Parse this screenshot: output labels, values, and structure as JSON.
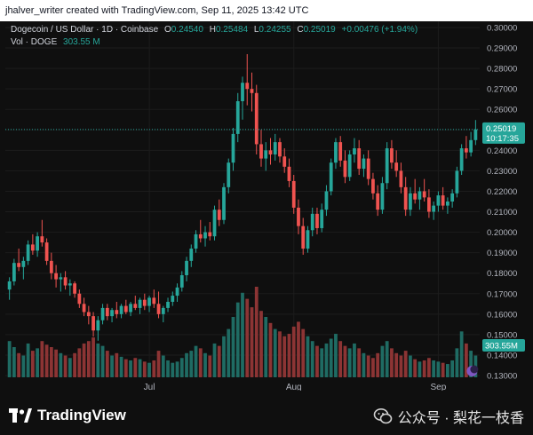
{
  "caption": "jhalver_writer created with TradingView.com, Sep 11, 2025 13:42 UTC",
  "legend": {
    "symbol": "Dogecoin / US Dollar · 1D · Coinbase",
    "o_label": "O",
    "o": "0.24540",
    "h_label": "H",
    "h": "0.25484",
    "l_label": "L",
    "l": "0.24255",
    "c_label": "C",
    "c": "0.25019",
    "change": "+0.00476 (+1.94%)",
    "vol_label": "Vol · DOGE",
    "vol": "303.55 M"
  },
  "price_tag": {
    "price": "0.25019",
    "countdown": "10:17:35"
  },
  "vol_tag": "303.55M",
  "footer": {
    "logo_text": "TradingView",
    "wechat_text": "公众号 · 梨花一枝香"
  },
  "colors": {
    "up": "#26a69a",
    "down": "#ef5350",
    "vol_up": "#1f6b63",
    "vol_down": "#8c3434",
    "background": "#0f0f0f",
    "grid": "#1c1c1c"
  },
  "chart_data": {
    "type": "candlestick",
    "title": "Dogecoin / US Dollar · 1D · Coinbase",
    "y_axis_ticks": [
      "0.30000",
      "0.29000",
      "0.28000",
      "0.27000",
      "0.26000",
      "0.25000",
      "0.24000",
      "0.23000",
      "0.22000",
      "0.21000",
      "0.20000",
      "0.19000",
      "0.18000",
      "0.17000",
      "0.16000",
      "0.15000",
      "0.14000",
      "0.13000"
    ],
    "x_axis_labels": [
      {
        "label": "Jul",
        "index": 30
      },
      {
        "label": "Aug",
        "index": 61
      },
      {
        "label": "Sep",
        "index": 92
      }
    ],
    "ylim": [
      0.13,
      0.3
    ],
    "candles": [
      {
        "o": 0.172,
        "h": 0.178,
        "l": 0.167,
        "c": 0.176,
        "v": 0.3
      },
      {
        "o": 0.176,
        "h": 0.187,
        "l": 0.174,
        "c": 0.185,
        "v": 0.25
      },
      {
        "o": 0.185,
        "h": 0.192,
        "l": 0.181,
        "c": 0.183,
        "v": 0.2
      },
      {
        "o": 0.183,
        "h": 0.188,
        "l": 0.177,
        "c": 0.186,
        "v": 0.18
      },
      {
        "o": 0.186,
        "h": 0.196,
        "l": 0.184,
        "c": 0.194,
        "v": 0.28
      },
      {
        "o": 0.194,
        "h": 0.199,
        "l": 0.189,
        "c": 0.191,
        "v": 0.22
      },
      {
        "o": 0.191,
        "h": 0.2,
        "l": 0.188,
        "c": 0.198,
        "v": 0.24
      },
      {
        "o": 0.198,
        "h": 0.206,
        "l": 0.193,
        "c": 0.195,
        "v": 0.3
      },
      {
        "o": 0.195,
        "h": 0.197,
        "l": 0.184,
        "c": 0.186,
        "v": 0.27
      },
      {
        "o": 0.186,
        "h": 0.19,
        "l": 0.177,
        "c": 0.18,
        "v": 0.25
      },
      {
        "o": 0.18,
        "h": 0.184,
        "l": 0.173,
        "c": 0.177,
        "v": 0.23
      },
      {
        "o": 0.177,
        "h": 0.18,
        "l": 0.171,
        "c": 0.178,
        "v": 0.2
      },
      {
        "o": 0.178,
        "h": 0.181,
        "l": 0.172,
        "c": 0.174,
        "v": 0.18
      },
      {
        "o": 0.174,
        "h": 0.177,
        "l": 0.169,
        "c": 0.175,
        "v": 0.16
      },
      {
        "o": 0.175,
        "h": 0.176,
        "l": 0.168,
        "c": 0.17,
        "v": 0.2
      },
      {
        "o": 0.17,
        "h": 0.172,
        "l": 0.163,
        "c": 0.165,
        "v": 0.24
      },
      {
        "o": 0.165,
        "h": 0.168,
        "l": 0.159,
        "c": 0.161,
        "v": 0.28
      },
      {
        "o": 0.161,
        "h": 0.164,
        "l": 0.155,
        "c": 0.159,
        "v": 0.3
      },
      {
        "o": 0.159,
        "h": 0.161,
        "l": 0.149,
        "c": 0.152,
        "v": 0.33
      },
      {
        "o": 0.152,
        "h": 0.159,
        "l": 0.147,
        "c": 0.157,
        "v": 0.28
      },
      {
        "o": 0.157,
        "h": 0.165,
        "l": 0.155,
        "c": 0.163,
        "v": 0.26
      },
      {
        "o": 0.163,
        "h": 0.165,
        "l": 0.157,
        "c": 0.159,
        "v": 0.22
      },
      {
        "o": 0.159,
        "h": 0.163,
        "l": 0.156,
        "c": 0.162,
        "v": 0.18
      },
      {
        "o": 0.162,
        "h": 0.166,
        "l": 0.158,
        "c": 0.16,
        "v": 0.2
      },
      {
        "o": 0.16,
        "h": 0.165,
        "l": 0.158,
        "c": 0.164,
        "v": 0.17
      },
      {
        "o": 0.164,
        "h": 0.167,
        "l": 0.16,
        "c": 0.161,
        "v": 0.15
      },
      {
        "o": 0.161,
        "h": 0.166,
        "l": 0.159,
        "c": 0.165,
        "v": 0.14
      },
      {
        "o": 0.165,
        "h": 0.169,
        "l": 0.162,
        "c": 0.163,
        "v": 0.16
      },
      {
        "o": 0.163,
        "h": 0.168,
        "l": 0.16,
        "c": 0.167,
        "v": 0.15
      },
      {
        "o": 0.167,
        "h": 0.17,
        "l": 0.162,
        "c": 0.164,
        "v": 0.13
      },
      {
        "o": 0.164,
        "h": 0.169,
        "l": 0.161,
        "c": 0.168,
        "v": 0.12
      },
      {
        "o": 0.168,
        "h": 0.172,
        "l": 0.163,
        "c": 0.165,
        "v": 0.14
      },
      {
        "o": 0.165,
        "h": 0.171,
        "l": 0.158,
        "c": 0.16,
        "v": 0.22
      },
      {
        "o": 0.16,
        "h": 0.164,
        "l": 0.156,
        "c": 0.163,
        "v": 0.18
      },
      {
        "o": 0.163,
        "h": 0.168,
        "l": 0.161,
        "c": 0.166,
        "v": 0.14
      },
      {
        "o": 0.166,
        "h": 0.171,
        "l": 0.164,
        "c": 0.169,
        "v": 0.12
      },
      {
        "o": 0.169,
        "h": 0.175,
        "l": 0.166,
        "c": 0.173,
        "v": 0.13
      },
      {
        "o": 0.173,
        "h": 0.181,
        "l": 0.171,
        "c": 0.179,
        "v": 0.16
      },
      {
        "o": 0.179,
        "h": 0.188,
        "l": 0.176,
        "c": 0.186,
        "v": 0.2
      },
      {
        "o": 0.186,
        "h": 0.194,
        "l": 0.183,
        "c": 0.192,
        "v": 0.22
      },
      {
        "o": 0.192,
        "h": 0.201,
        "l": 0.19,
        "c": 0.199,
        "v": 0.26
      },
      {
        "o": 0.199,
        "h": 0.206,
        "l": 0.195,
        "c": 0.197,
        "v": 0.24
      },
      {
        "o": 0.197,
        "h": 0.203,
        "l": 0.193,
        "c": 0.2,
        "v": 0.2
      },
      {
        "o": 0.2,
        "h": 0.205,
        "l": 0.196,
        "c": 0.198,
        "v": 0.18
      },
      {
        "o": 0.198,
        "h": 0.213,
        "l": 0.196,
        "c": 0.211,
        "v": 0.28
      },
      {
        "o": 0.211,
        "h": 0.216,
        "l": 0.203,
        "c": 0.206,
        "v": 0.26
      },
      {
        "o": 0.206,
        "h": 0.224,
        "l": 0.204,
        "c": 0.222,
        "v": 0.34
      },
      {
        "o": 0.222,
        "h": 0.236,
        "l": 0.219,
        "c": 0.234,
        "v": 0.4
      },
      {
        "o": 0.234,
        "h": 0.251,
        "l": 0.23,
        "c": 0.248,
        "v": 0.5
      },
      {
        "o": 0.248,
        "h": 0.268,
        "l": 0.244,
        "c": 0.264,
        "v": 0.62
      },
      {
        "o": 0.264,
        "h": 0.276,
        "l": 0.255,
        "c": 0.273,
        "v": 0.7
      },
      {
        "o": 0.273,
        "h": 0.287,
        "l": 0.262,
        "c": 0.27,
        "v": 0.65
      },
      {
        "o": 0.27,
        "h": 0.278,
        "l": 0.259,
        "c": 0.268,
        "v": 0.58
      },
      {
        "o": 0.268,
        "h": 0.272,
        "l": 0.238,
        "c": 0.243,
        "v": 0.75
      },
      {
        "o": 0.243,
        "h": 0.25,
        "l": 0.232,
        "c": 0.236,
        "v": 0.55
      },
      {
        "o": 0.236,
        "h": 0.244,
        "l": 0.23,
        "c": 0.24,
        "v": 0.5
      },
      {
        "o": 0.24,
        "h": 0.246,
        "l": 0.233,
        "c": 0.238,
        "v": 0.45
      },
      {
        "o": 0.238,
        "h": 0.248,
        "l": 0.235,
        "c": 0.244,
        "v": 0.4
      },
      {
        "o": 0.244,
        "h": 0.246,
        "l": 0.234,
        "c": 0.237,
        "v": 0.38
      },
      {
        "o": 0.237,
        "h": 0.241,
        "l": 0.229,
        "c": 0.232,
        "v": 0.34
      },
      {
        "o": 0.232,
        "h": 0.236,
        "l": 0.222,
        "c": 0.225,
        "v": 0.36
      },
      {
        "o": 0.225,
        "h": 0.228,
        "l": 0.209,
        "c": 0.212,
        "v": 0.42
      },
      {
        "o": 0.212,
        "h": 0.216,
        "l": 0.199,
        "c": 0.203,
        "v": 0.46
      },
      {
        "o": 0.203,
        "h": 0.207,
        "l": 0.189,
        "c": 0.192,
        "v": 0.4
      },
      {
        "o": 0.192,
        "h": 0.203,
        "l": 0.19,
        "c": 0.201,
        "v": 0.34
      },
      {
        "o": 0.201,
        "h": 0.212,
        "l": 0.198,
        "c": 0.209,
        "v": 0.3
      },
      {
        "o": 0.209,
        "h": 0.212,
        "l": 0.199,
        "c": 0.202,
        "v": 0.26
      },
      {
        "o": 0.202,
        "h": 0.214,
        "l": 0.2,
        "c": 0.211,
        "v": 0.24
      },
      {
        "o": 0.211,
        "h": 0.223,
        "l": 0.208,
        "c": 0.22,
        "v": 0.28
      },
      {
        "o": 0.22,
        "h": 0.236,
        "l": 0.218,
        "c": 0.234,
        "v": 0.32
      },
      {
        "o": 0.234,
        "h": 0.246,
        "l": 0.231,
        "c": 0.244,
        "v": 0.36
      },
      {
        "o": 0.244,
        "h": 0.247,
        "l": 0.232,
        "c": 0.235,
        "v": 0.3
      },
      {
        "o": 0.235,
        "h": 0.24,
        "l": 0.224,
        "c": 0.227,
        "v": 0.26
      },
      {
        "o": 0.227,
        "h": 0.24,
        "l": 0.225,
        "c": 0.238,
        "v": 0.24
      },
      {
        "o": 0.238,
        "h": 0.246,
        "l": 0.234,
        "c": 0.241,
        "v": 0.28
      },
      {
        "o": 0.241,
        "h": 0.245,
        "l": 0.228,
        "c": 0.231,
        "v": 0.24
      },
      {
        "o": 0.231,
        "h": 0.238,
        "l": 0.227,
        "c": 0.236,
        "v": 0.2
      },
      {
        "o": 0.236,
        "h": 0.24,
        "l": 0.223,
        "c": 0.226,
        "v": 0.18
      },
      {
        "o": 0.226,
        "h": 0.229,
        "l": 0.216,
        "c": 0.219,
        "v": 0.16
      },
      {
        "o": 0.219,
        "h": 0.223,
        "l": 0.208,
        "c": 0.211,
        "v": 0.2
      },
      {
        "o": 0.211,
        "h": 0.227,
        "l": 0.209,
        "c": 0.224,
        "v": 0.26
      },
      {
        "o": 0.224,
        "h": 0.244,
        "l": 0.221,
        "c": 0.241,
        "v": 0.3
      },
      {
        "o": 0.241,
        "h": 0.245,
        "l": 0.231,
        "c": 0.234,
        "v": 0.24
      },
      {
        "o": 0.234,
        "h": 0.24,
        "l": 0.227,
        "c": 0.23,
        "v": 0.2
      },
      {
        "o": 0.23,
        "h": 0.234,
        "l": 0.219,
        "c": 0.222,
        "v": 0.18
      },
      {
        "o": 0.222,
        "h": 0.227,
        "l": 0.208,
        "c": 0.211,
        "v": 0.22
      },
      {
        "o": 0.211,
        "h": 0.222,
        "l": 0.208,
        "c": 0.219,
        "v": 0.18
      },
      {
        "o": 0.219,
        "h": 0.226,
        "l": 0.214,
        "c": 0.216,
        "v": 0.15
      },
      {
        "o": 0.216,
        "h": 0.222,
        "l": 0.211,
        "c": 0.22,
        "v": 0.13
      },
      {
        "o": 0.22,
        "h": 0.226,
        "l": 0.215,
        "c": 0.217,
        "v": 0.14
      },
      {
        "o": 0.217,
        "h": 0.221,
        "l": 0.207,
        "c": 0.21,
        "v": 0.16
      },
      {
        "o": 0.21,
        "h": 0.215,
        "l": 0.206,
        "c": 0.213,
        "v": 0.14
      },
      {
        "o": 0.213,
        "h": 0.22,
        "l": 0.21,
        "c": 0.218,
        "v": 0.13
      },
      {
        "o": 0.218,
        "h": 0.222,
        "l": 0.211,
        "c": 0.213,
        "v": 0.12
      },
      {
        "o": 0.213,
        "h": 0.217,
        "l": 0.209,
        "c": 0.215,
        "v": 0.11
      },
      {
        "o": 0.215,
        "h": 0.221,
        "l": 0.212,
        "c": 0.219,
        "v": 0.14
      },
      {
        "o": 0.219,
        "h": 0.232,
        "l": 0.217,
        "c": 0.23,
        "v": 0.24
      },
      {
        "o": 0.23,
        "h": 0.243,
        "l": 0.228,
        "c": 0.241,
        "v": 0.38
      },
      {
        "o": 0.241,
        "h": 0.247,
        "l": 0.236,
        "c": 0.239,
        "v": 0.28
      },
      {
        "o": 0.239,
        "h": 0.249,
        "l": 0.237,
        "c": 0.245,
        "v": 0.22
      },
      {
        "o": 0.245,
        "h": 0.2548,
        "l": 0.2426,
        "c": 0.2502,
        "v": 0.18
      }
    ]
  }
}
